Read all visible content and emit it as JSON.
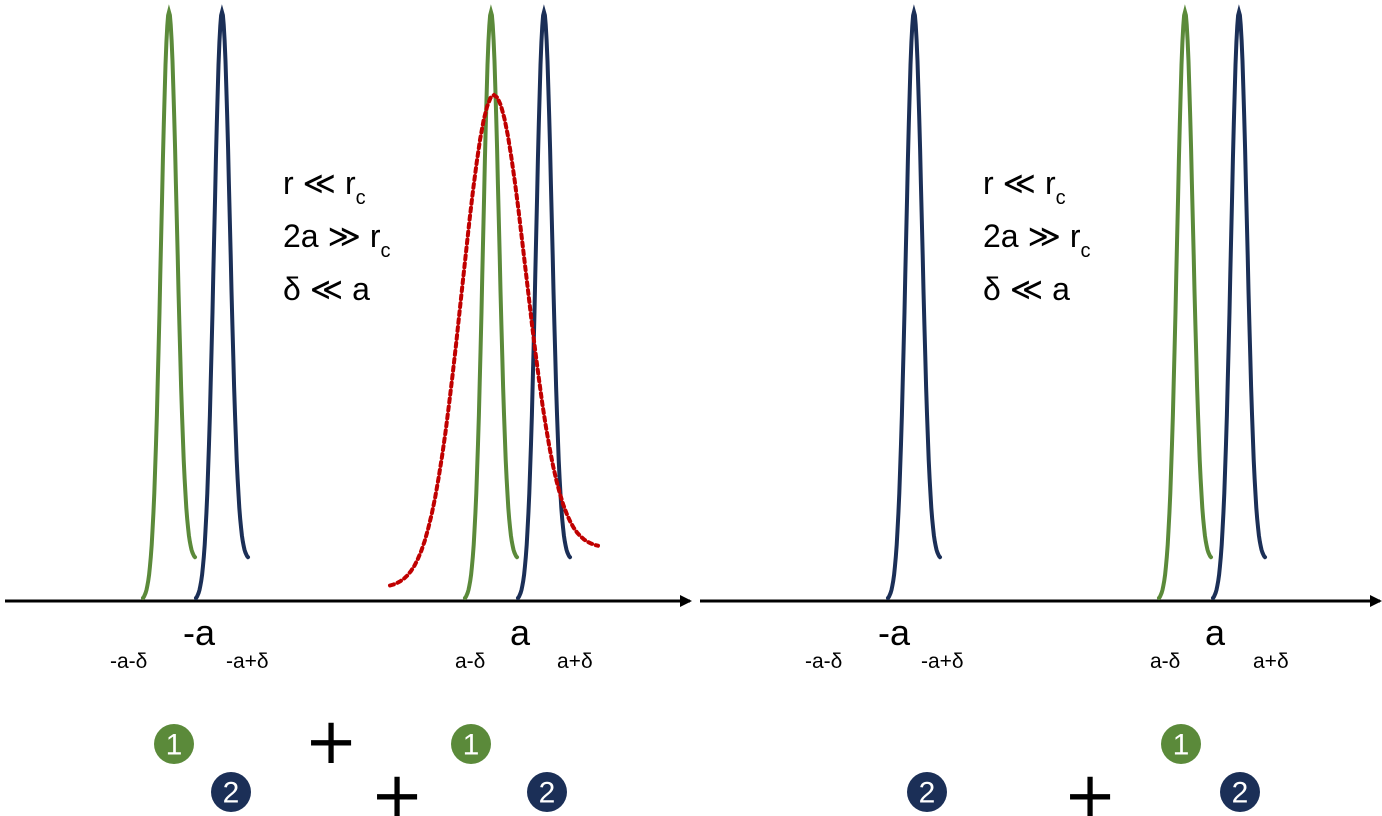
{
  "colors": {
    "particle_1": "#5b8a3a",
    "particle_2": "#1b2f57",
    "dotted_envelope": "#c00000",
    "axis": "#000000"
  },
  "panels": [
    {
      "axis_labels": {
        "minus_a": "-a",
        "minus_a_minus_delta": "-a-δ",
        "minus_a_plus_delta": "-a+δ",
        "plus_a": "a",
        "a_minus_delta": "a-δ",
        "a_plus_delta": "a+δ"
      },
      "conditions": [
        {
          "main": "r ≪ r",
          "sub": "c"
        },
        {
          "main": "2a ≫ r",
          "sub": "c"
        },
        {
          "main": "δ ≪ a",
          "sub": ""
        }
      ],
      "badges": [
        "1",
        "2",
        "1",
        "2"
      ],
      "plus_signs": [
        "+",
        "+"
      ]
    },
    {
      "axis_labels": {
        "minus_a": "-a",
        "minus_a_minus_delta": "-a-δ",
        "minus_a_plus_delta": "-a+δ",
        "plus_a": "a",
        "a_minus_delta": "a-δ",
        "a_plus_delta": "a+δ"
      },
      "conditions": [
        {
          "main": "r ≪ r",
          "sub": "c"
        },
        {
          "main": "2a ≫ r",
          "sub": "c"
        },
        {
          "main": "δ ≪ a",
          "sub": ""
        }
      ],
      "badges": [
        "2",
        "1",
        "2"
      ],
      "plus_signs": [
        "+"
      ]
    }
  ]
}
